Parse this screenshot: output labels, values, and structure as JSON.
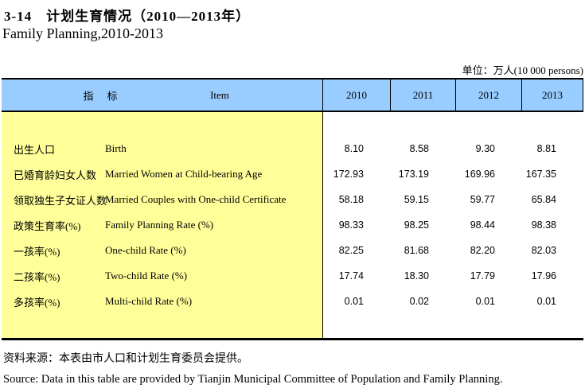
{
  "page": {
    "title_zh": "3-14　计划生育情况（2010—2013年）",
    "title_en": "Family Planning,2010-2013",
    "unit_note": "单位：万人(10 000 persons)"
  },
  "table": {
    "header": {
      "indicator_zh": "指　标",
      "indicator_en": "Item",
      "years": [
        "2010",
        "2011",
        "2012",
        "2013"
      ]
    },
    "rows": [
      {
        "zh": "出生人口",
        "en": "Birth",
        "values": [
          "8.10",
          "8.58",
          "9.30",
          "8.81"
        ]
      },
      {
        "zh": "已婚育龄妇女人数",
        "en": "Married Women at Child-bearing Age",
        "values": [
          "172.93",
          "173.19",
          "169.96",
          "167.35"
        ]
      },
      {
        "zh": "领取独生子女证人数",
        "en": "Married Couples with One-child Certificate",
        "values": [
          "58.18",
          "59.15",
          "59.77",
          "65.84"
        ]
      },
      {
        "zh": "政策生育率(%)",
        "en": "Family Planning Rate (%)",
        "values": [
          "98.33",
          "98.25",
          "98.44",
          "98.38"
        ]
      },
      {
        "zh": "一孩率(%)",
        "en": "One-child Rate (%)",
        "values": [
          "82.25",
          "81.68",
          "82.20",
          "82.03"
        ]
      },
      {
        "zh": "二孩率(%)",
        "en": "Two-child Rate (%)",
        "values": [
          "17.74",
          "18.30",
          "17.79",
          "17.96"
        ]
      },
      {
        "zh": "多孩率(%)",
        "en": "Multi-child Rate (%)",
        "values": [
          "0.01",
          "0.02",
          "0.01",
          "0.01"
        ]
      }
    ]
  },
  "footer": {
    "source_zh": "资料来源：本表由市人口和计划生育委员会提供。",
    "source_en": "Source: Data in this table are provided by Tianjin Municipal Committee of Population and Family Planning."
  },
  "colors": {
    "header_bg": "#99CCFF",
    "stub_bg": "#FFFF99",
    "border": "#000000"
  }
}
